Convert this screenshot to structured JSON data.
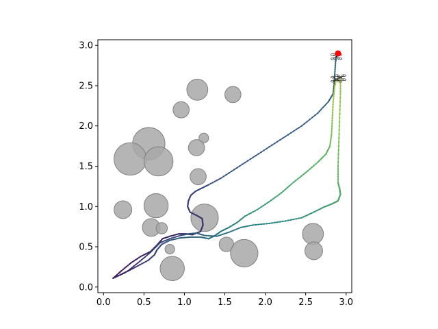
{
  "chart_data": {
    "type": "scatter",
    "title": "",
    "xlabel": "",
    "ylabel": "",
    "xlim": [
      -0.07,
      3.07
    ],
    "ylim": [
      -0.07,
      3.07
    ],
    "grid": false,
    "legend": "none",
    "xticks": [
      "0.0",
      "0.5",
      "1.0",
      "1.5",
      "2.0",
      "2.5",
      "3.0"
    ],
    "yticks": [
      "0.0",
      "0.5",
      "1.0",
      "1.5",
      "2.0",
      "2.5",
      "3.0"
    ],
    "obstacles": [
      {
        "x": 1.16,
        "y": 2.45,
        "r": 0.13
      },
      {
        "x": 1.6,
        "y": 2.39,
        "r": 0.1
      },
      {
        "x": 0.96,
        "y": 2.2,
        "r": 0.1
      },
      {
        "x": 0.56,
        "y": 1.78,
        "r": 0.2
      },
      {
        "x": 0.33,
        "y": 1.59,
        "r": 0.2
      },
      {
        "x": 0.68,
        "y": 1.56,
        "r": 0.18
      },
      {
        "x": 1.24,
        "y": 1.85,
        "r": 0.06
      },
      {
        "x": 1.15,
        "y": 1.73,
        "r": 0.1
      },
      {
        "x": 1.17,
        "y": 1.37,
        "r": 0.1
      },
      {
        "x": 0.24,
        "y": 0.96,
        "r": 0.11
      },
      {
        "x": 0.65,
        "y": 1.01,
        "r": 0.15
      },
      {
        "x": 1.25,
        "y": 0.86,
        "r": 0.17
      },
      {
        "x": 0.59,
        "y": 0.74,
        "r": 0.11
      },
      {
        "x": 0.72,
        "y": 0.73,
        "r": 0.07
      },
      {
        "x": 0.82,
        "y": 0.47,
        "r": 0.06
      },
      {
        "x": 1.52,
        "y": 0.53,
        "r": 0.09
      },
      {
        "x": 1.74,
        "y": 0.42,
        "r": 0.17
      },
      {
        "x": 0.85,
        "y": 0.23,
        "r": 0.15
      },
      {
        "x": 2.59,
        "y": 0.66,
        "r": 0.13
      },
      {
        "x": 2.6,
        "y": 0.45,
        "r": 0.11
      }
    ],
    "goal": {
      "x": 2.9,
      "y": 2.9,
      "color": "#ff0000"
    },
    "series": [
      {
        "start": 0.05,
        "end": 0.38,
        "points": [
          [
            0.12,
            0.11
          ],
          [
            0.22,
            0.2
          ],
          [
            0.34,
            0.3
          ],
          [
            0.46,
            0.38
          ],
          [
            0.58,
            0.44
          ],
          [
            0.66,
            0.52
          ],
          [
            0.73,
            0.6
          ],
          [
            0.82,
            0.63
          ],
          [
            0.93,
            0.66
          ],
          [
            1.02,
            0.66
          ],
          [
            1.1,
            0.65
          ],
          [
            1.2,
            0.69
          ],
          [
            1.23,
            0.77
          ],
          [
            1.22,
            0.85
          ],
          [
            1.15,
            0.89
          ],
          [
            1.07,
            0.93
          ],
          [
            1.04,
            1.0
          ],
          [
            1.05,
            1.07
          ],
          [
            1.08,
            1.14
          ],
          [
            1.14,
            1.19
          ],
          [
            1.22,
            1.23
          ],
          [
            1.3,
            1.27
          ],
          [
            1.45,
            1.35
          ],
          [
            1.65,
            1.48
          ],
          [
            1.85,
            1.61
          ],
          [
            2.05,
            1.74
          ],
          [
            2.25,
            1.87
          ],
          [
            2.45,
            2.0
          ],
          [
            2.65,
            2.16
          ],
          [
            2.78,
            2.3
          ],
          [
            2.84,
            2.4
          ],
          [
            2.85,
            2.5
          ],
          [
            2.86,
            2.65
          ],
          [
            2.87,
            2.8
          ],
          [
            2.88,
            2.86
          ]
        ]
      },
      {
        "start": 0.1,
        "end": 0.92,
        "points": [
          [
            0.12,
            0.11
          ],
          [
            0.25,
            0.17
          ],
          [
            0.4,
            0.25
          ],
          [
            0.55,
            0.33
          ],
          [
            0.63,
            0.4
          ],
          [
            0.66,
            0.46
          ],
          [
            0.72,
            0.53
          ],
          [
            0.82,
            0.58
          ],
          [
            0.95,
            0.61
          ],
          [
            1.08,
            0.62
          ],
          [
            1.2,
            0.62
          ],
          [
            1.3,
            0.6
          ],
          [
            1.38,
            0.64
          ],
          [
            1.45,
            0.69
          ],
          [
            1.55,
            0.74
          ],
          [
            1.65,
            0.8
          ],
          [
            1.75,
            0.88
          ],
          [
            1.9,
            0.96
          ],
          [
            2.05,
            1.06
          ],
          [
            2.2,
            1.17
          ],
          [
            2.35,
            1.3
          ],
          [
            2.5,
            1.42
          ],
          [
            2.65,
            1.55
          ],
          [
            2.75,
            1.65
          ],
          [
            2.8,
            1.75
          ],
          [
            2.82,
            1.9
          ],
          [
            2.83,
            2.1
          ],
          [
            2.84,
            2.3
          ],
          [
            2.86,
            2.5
          ],
          [
            2.88,
            2.58
          ]
        ]
      },
      {
        "start": 0.12,
        "end": 0.88,
        "points": [
          [
            0.12,
            0.11
          ],
          [
            0.3,
            0.2
          ],
          [
            0.45,
            0.32
          ],
          [
            0.58,
            0.43
          ],
          [
            0.7,
            0.55
          ],
          [
            0.82,
            0.6
          ],
          [
            0.95,
            0.64
          ],
          [
            1.05,
            0.66
          ],
          [
            1.15,
            0.67
          ],
          [
            1.25,
            0.64
          ],
          [
            1.4,
            0.63
          ],
          [
            1.55,
            0.68
          ],
          [
            1.7,
            0.74
          ],
          [
            1.85,
            0.77
          ],
          [
            2.05,
            0.79
          ],
          [
            2.25,
            0.82
          ],
          [
            2.45,
            0.86
          ],
          [
            2.6,
            0.93
          ],
          [
            2.72,
            0.99
          ],
          [
            2.82,
            1.03
          ],
          [
            2.9,
            1.07
          ],
          [
            2.93,
            1.15
          ],
          [
            2.92,
            1.22
          ],
          [
            2.9,
            1.3
          ],
          [
            2.9,
            1.5
          ],
          [
            2.91,
            1.8
          ],
          [
            2.92,
            2.1
          ],
          [
            2.93,
            2.4
          ],
          [
            2.93,
            2.6
          ]
        ]
      }
    ]
  }
}
